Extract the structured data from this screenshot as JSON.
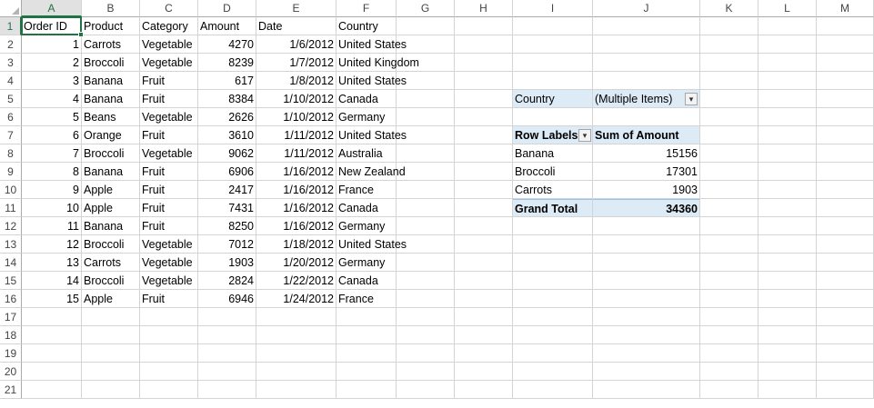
{
  "columns": [
    "A",
    "B",
    "C",
    "D",
    "E",
    "F",
    "G",
    "H",
    "I",
    "J",
    "K",
    "L",
    "M"
  ],
  "rows": [
    "1",
    "2",
    "3",
    "4",
    "5",
    "6",
    "7",
    "8",
    "9",
    "10",
    "11",
    "12",
    "13",
    "14",
    "15",
    "16",
    "17",
    "18",
    "19",
    "20",
    "21"
  ],
  "table": {
    "headers": [
      "Order ID",
      "Product",
      "Category",
      "Amount",
      "Date",
      "Country"
    ],
    "rows": [
      [
        "1",
        "Carrots",
        "Vegetable",
        "4270",
        "1/6/2012",
        "United States"
      ],
      [
        "2",
        "Broccoli",
        "Vegetable",
        "8239",
        "1/7/2012",
        "United Kingdom"
      ],
      [
        "3",
        "Banana",
        "Fruit",
        "617",
        "1/8/2012",
        "United States"
      ],
      [
        "4",
        "Banana",
        "Fruit",
        "8384",
        "1/10/2012",
        "Canada"
      ],
      [
        "5",
        "Beans",
        "Vegetable",
        "2626",
        "1/10/2012",
        "Germany"
      ],
      [
        "6",
        "Orange",
        "Fruit",
        "3610",
        "1/11/2012",
        "United States"
      ],
      [
        "7",
        "Broccoli",
        "Vegetable",
        "9062",
        "1/11/2012",
        "Australia"
      ],
      [
        "8",
        "Banana",
        "Fruit",
        "6906",
        "1/16/2012",
        "New Zealand"
      ],
      [
        "9",
        "Apple",
        "Fruit",
        "2417",
        "1/16/2012",
        "France"
      ],
      [
        "10",
        "Apple",
        "Fruit",
        "7431",
        "1/16/2012",
        "Canada"
      ],
      [
        "11",
        "Banana",
        "Fruit",
        "8250",
        "1/16/2012",
        "Germany"
      ],
      [
        "12",
        "Broccoli",
        "Vegetable",
        "7012",
        "1/18/2012",
        "United States"
      ],
      [
        "13",
        "Carrots",
        "Vegetable",
        "1903",
        "1/20/2012",
        "Germany"
      ],
      [
        "14",
        "Broccoli",
        "Vegetable",
        "2824",
        "1/22/2012",
        "Canada"
      ],
      [
        "15",
        "Apple",
        "Fruit",
        "6946",
        "1/24/2012",
        "France"
      ]
    ]
  },
  "pivot": {
    "filter_label": "Country",
    "filter_value": "(Multiple Items)",
    "row_labels_header": "Row Labels",
    "sum_header": "Sum of Amount",
    "rows": [
      {
        "label": "Banana",
        "value": "15156"
      },
      {
        "label": "Broccoli",
        "value": "17301"
      },
      {
        "label": "Carrots",
        "value": "1903"
      }
    ],
    "grand_total_label": "Grand Total",
    "grand_total_value": "34360",
    "filter_icon": "filter-dropdown-icon"
  },
  "colors": {
    "accent": "#217346",
    "pivot_fill": "#ddebf7",
    "gridline": "#d4d4d4"
  }
}
